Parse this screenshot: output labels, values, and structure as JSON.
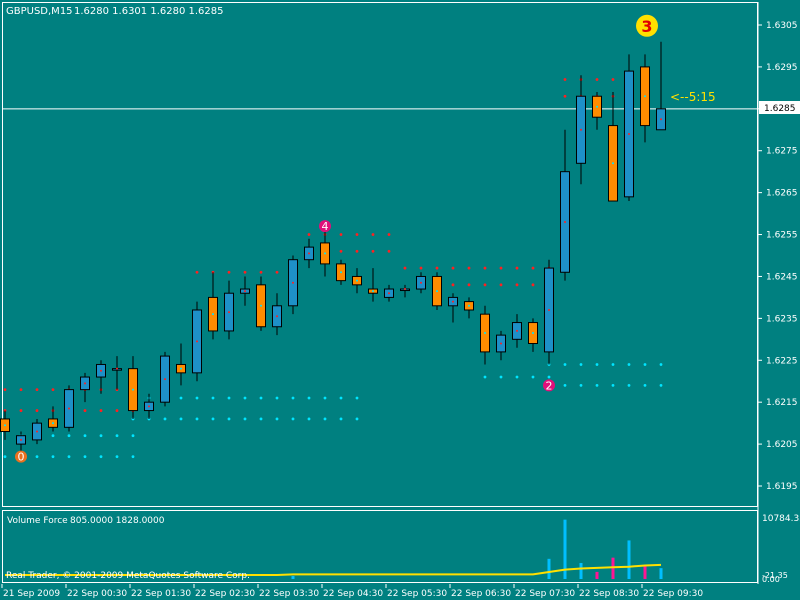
{
  "header": {
    "symbol": "GBPUSD,M15",
    "ohlc": "1.6280 1.6301 1.6280 1.6285"
  },
  "countdown": "<--5:15",
  "current_price_label": "1.6285",
  "volume_panel": {
    "title": "Volume Force",
    "values": "805.0000 1828.0000",
    "max_label": "10784.35",
    "min_label": "0.00",
    "other_label": "-21.35"
  },
  "copyright": "Real Trader, © 2001-2009 MetaQuotes Software Corp.",
  "colors": {
    "background": "#008080",
    "bull_candle": "#1e90c8",
    "bear_candle": "#ff8c00",
    "resistance_dot": "#ff2020",
    "support_dot": "#00e5ff",
    "marker": "#e0107a",
    "volume_line": "#ffe000",
    "volume_bar_blue": "#00bfff",
    "volume_bar_magenta": "#ff1493",
    "grid_line": "#ffffff",
    "label_3_fill": "#ffe000",
    "label_3_text": "#e00000",
    "countdown_text": "#ffe000"
  },
  "chart_data": {
    "type": "candlestick",
    "title": "GBPUSD,M15",
    "price_axis": {
      "min": 1.6188,
      "max": 1.6312,
      "tick_labels": [
        "1.6305",
        "1.6295",
        "1.6285",
        "1.6275",
        "1.6265",
        "1.6255",
        "1.6245",
        "1.6235",
        "1.6225",
        "1.6215",
        "1.6205",
        "1.6195"
      ]
    },
    "time_labels": [
      "21 Sep 2009",
      "22 Sep 00:30",
      "22 Sep 01:30",
      "22 Sep 02:30",
      "22 Sep 03:30",
      "22 Sep 04:30",
      "22 Sep 05:30",
      "22 Sep 06:30",
      "22 Sep 07:30",
      "22 Sep 08:30",
      "22 Sep 09:30"
    ],
    "candles": [
      {
        "o": 1.6211,
        "h": 1.6213,
        "l": 1.6206,
        "c": 1.6208
      },
      {
        "o": 1.6205,
        "h": 1.6208,
        "l": 1.6203,
        "c": 1.6207
      },
      {
        "o": 1.6206,
        "h": 1.6211,
        "l": 1.6205,
        "c": 1.621
      },
      {
        "o": 1.6211,
        "h": 1.6214,
        "l": 1.6208,
        "c": 1.6209
      },
      {
        "o": 1.6209,
        "h": 1.6219,
        "l": 1.6208,
        "c": 1.6218
      },
      {
        "o": 1.6218,
        "h": 1.6222,
        "l": 1.6215,
        "c": 1.6221
      },
      {
        "o": 1.6221,
        "h": 1.6225,
        "l": 1.6217,
        "c": 1.6224
      },
      {
        "o": 1.6223,
        "h": 1.6226,
        "l": 1.6218,
        "c": 1.6223
      },
      {
        "o": 1.6223,
        "h": 1.6226,
        "l": 1.6211,
        "c": 1.6213
      },
      {
        "o": 1.6213,
        "h": 1.6217,
        "l": 1.6211,
        "c": 1.6215
      },
      {
        "o": 1.6215,
        "h": 1.6227,
        "l": 1.6214,
        "c": 1.6226
      },
      {
        "o": 1.6224,
        "h": 1.6229,
        "l": 1.6219,
        "c": 1.6222
      },
      {
        "o": 1.6222,
        "h": 1.6239,
        "l": 1.622,
        "c": 1.6237
      },
      {
        "o": 1.624,
        "h": 1.6246,
        "l": 1.623,
        "c": 1.6232
      },
      {
        "o": 1.6232,
        "h": 1.6244,
        "l": 1.623,
        "c": 1.6241
      },
      {
        "o": 1.6241,
        "h": 1.6245,
        "l": 1.6238,
        "c": 1.6242
      },
      {
        "o": 1.6243,
        "h": 1.6245,
        "l": 1.6232,
        "c": 1.6233
      },
      {
        "o": 1.6233,
        "h": 1.6241,
        "l": 1.6231,
        "c": 1.6238
      },
      {
        "o": 1.6238,
        "h": 1.625,
        "l": 1.6236,
        "c": 1.6249
      },
      {
        "o": 1.6249,
        "h": 1.6254,
        "l": 1.6247,
        "c": 1.6252
      },
      {
        "o": 1.6253,
        "h": 1.6256,
        "l": 1.6245,
        "c": 1.6248
      },
      {
        "o": 1.6248,
        "h": 1.6249,
        "l": 1.6243,
        "c": 1.6244
      },
      {
        "o": 1.6245,
        "h": 1.6247,
        "l": 1.6241,
        "c": 1.6243
      },
      {
        "o": 1.6242,
        "h": 1.6247,
        "l": 1.6239,
        "c": 1.6241
      },
      {
        "o": 1.624,
        "h": 1.6243,
        "l": 1.6239,
        "c": 1.6242
      },
      {
        "o": 1.6242,
        "h": 1.6243,
        "l": 1.624,
        "c": 1.6242
      },
      {
        "o": 1.6242,
        "h": 1.6246,
        "l": 1.6241,
        "c": 1.6245
      },
      {
        "o": 1.6245,
        "h": 1.6246,
        "l": 1.6237,
        "c": 1.6238
      },
      {
        "o": 1.6238,
        "h": 1.6241,
        "l": 1.6234,
        "c": 1.624
      },
      {
        "o": 1.6239,
        "h": 1.624,
        "l": 1.6235,
        "c": 1.6237
      },
      {
        "o": 1.6236,
        "h": 1.6238,
        "l": 1.6224,
        "c": 1.6227
      },
      {
        "o": 1.6227,
        "h": 1.6232,
        "l": 1.6225,
        "c": 1.6231
      },
      {
        "o": 1.623,
        "h": 1.6236,
        "l": 1.6228,
        "c": 1.6234
      },
      {
        "o": 1.6234,
        "h": 1.6235,
        "l": 1.6227,
        "c": 1.6229
      },
      {
        "o": 1.6227,
        "h": 1.6249,
        "l": 1.6224,
        "c": 1.6247
      },
      {
        "o": 1.6246,
        "h": 1.628,
        "l": 1.6244,
        "c": 1.627
      },
      {
        "o": 1.6272,
        "h": 1.6293,
        "l": 1.6267,
        "c": 1.6288
      },
      {
        "o": 1.6288,
        "h": 1.6289,
        "l": 1.628,
        "c": 1.6283
      },
      {
        "o": 1.6281,
        "h": 1.6289,
        "l": 1.6263,
        "c": 1.6263
      },
      {
        "o": 1.6264,
        "h": 1.6298,
        "l": 1.6263,
        "c": 1.6294
      },
      {
        "o": 1.6295,
        "h": 1.6298,
        "l": 1.6277,
        "c": 1.6281
      },
      {
        "o": 1.628,
        "h": 1.6301,
        "l": 1.628,
        "c": 1.6285
      }
    ],
    "resistance_levels": [
      {
        "price": 1.6218,
        "from": 0,
        "to": 8
      },
      {
        "price": 1.6213,
        "from": 0,
        "to": 8
      },
      {
        "price": 1.6246,
        "from": 12,
        "to": 18
      },
      {
        "price": 1.6255,
        "from": 19,
        "to": 24
      },
      {
        "price": 1.6251,
        "from": 19,
        "to": 24
      },
      {
        "price": 1.6247,
        "from": 25,
        "to": 34
      },
      {
        "price": 1.6243,
        "from": 26,
        "to": 34
      },
      {
        "price": 1.6292,
        "from": 35,
        "to": 40
      },
      {
        "price": 1.6288,
        "from": 35,
        "to": 40
      }
    ],
    "support_levels": [
      {
        "price": 1.6202,
        "from": 0,
        "to": 8
      },
      {
        "price": 1.6207,
        "from": 1,
        "to": 8
      },
      {
        "price": 1.6216,
        "from": 8,
        "to": 22
      },
      {
        "price": 1.6211,
        "from": 8,
        "to": 22
      },
      {
        "price": 1.6221,
        "from": 30,
        "to": 34
      },
      {
        "price": 1.6224,
        "from": 34,
        "to": 41
      },
      {
        "price": 1.6219,
        "from": 34,
        "to": 41
      }
    ],
    "markers": [
      {
        "label": "0",
        "index": 1,
        "price": 1.6202
      },
      {
        "label": "4",
        "index": 20,
        "price": 1.6257
      },
      {
        "label": "2",
        "index": 34,
        "price": 1.6219
      }
    ],
    "wave_label": {
      "label": "3",
      "index": 40,
      "price": 1.6306
    },
    "volume": {
      "max": 10784.35,
      "bars": [
        {
          "index": 18,
          "value": 500,
          "color": "blue"
        },
        {
          "index": 34,
          "value": 3400,
          "color": "blue"
        },
        {
          "index": 35,
          "value": 10000,
          "color": "blue"
        },
        {
          "index": 36,
          "value": 2700,
          "color": "blue"
        },
        {
          "index": 37,
          "value": 1200,
          "color": "magenta"
        },
        {
          "index": 38,
          "value": 3600,
          "color": "magenta"
        },
        {
          "index": 39,
          "value": 6500,
          "color": "blue"
        },
        {
          "index": 40,
          "value": 2300,
          "color": "magenta"
        },
        {
          "index": 41,
          "value": 1828,
          "color": "blue"
        }
      ],
      "line": [
        0,
        0,
        0,
        0,
        0,
        0,
        0,
        0,
        0,
        0,
        0,
        0,
        0,
        0,
        0,
        0,
        0,
        0,
        100,
        100,
        100,
        100,
        100,
        100,
        100,
        100,
        100,
        100,
        100,
        100,
        100,
        100,
        100,
        100,
        500,
        900,
        1100,
        1200,
        1300,
        1400,
        1600,
        1700
      ]
    }
  }
}
